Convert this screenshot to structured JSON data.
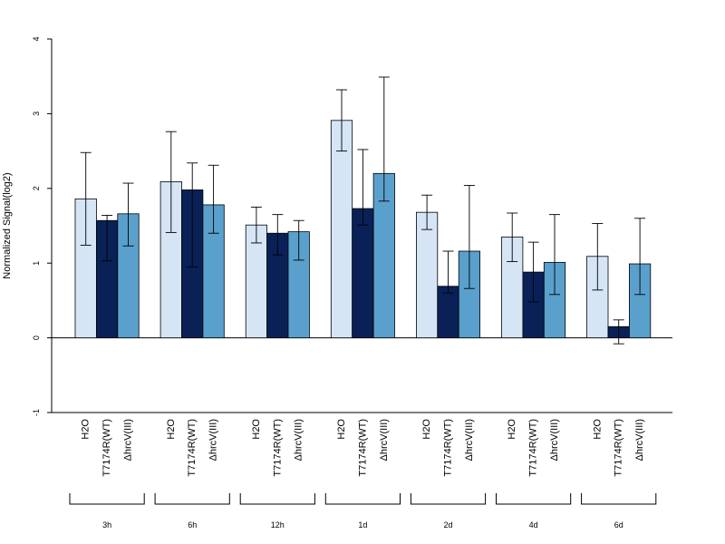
{
  "chart_data": {
    "type": "bar",
    "title": "",
    "xlabel": "",
    "ylabel": "Normalized Signal(log2)",
    "ylim": [
      -1,
      4
    ],
    "yticks": [
      -1,
      0,
      1,
      2,
      3,
      4
    ],
    "grid": false,
    "legend": "none",
    "bar_labels": [
      "H2O",
      "T7174R(WT)",
      "ΔhrcV(III)"
    ],
    "groups": [
      "3h",
      "6h",
      "12h",
      "1d",
      "2d",
      "4d",
      "6d"
    ],
    "series": [
      {
        "name": "H2O",
        "color": "#d6e5f5",
        "values": [
          1.86,
          2.09,
          1.51,
          2.91,
          1.68,
          1.35,
          1.09
        ],
        "err_low": [
          1.24,
          1.41,
          1.27,
          2.5,
          1.45,
          1.02,
          0.64
        ],
        "err_high": [
          2.48,
          2.76,
          1.75,
          3.32,
          1.91,
          1.67,
          1.53
        ]
      },
      {
        "name": "T7174R(WT)",
        "color": "#0a2158",
        "values": [
          1.57,
          1.98,
          1.4,
          1.73,
          0.69,
          0.88,
          0.15
        ],
        "err_low": [
          1.03,
          0.95,
          1.11,
          1.51,
          0.6,
          0.48,
          -0.08
        ],
        "err_high": [
          1.64,
          2.34,
          1.65,
          2.52,
          1.16,
          1.28,
          0.24
        ]
      },
      {
        "name": "ΔhrcV(III)",
        "color": "#5aa0cd",
        "values": [
          1.66,
          1.78,
          1.42,
          2.2,
          1.16,
          1.01,
          0.99
        ],
        "err_low": [
          1.23,
          1.4,
          1.04,
          1.83,
          0.66,
          0.58,
          0.58
        ],
        "err_high": [
          2.07,
          2.31,
          1.57,
          3.49,
          2.04,
          1.65,
          1.6
        ]
      }
    ]
  }
}
